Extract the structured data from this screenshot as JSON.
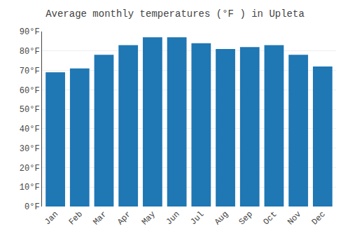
{
  "chart_data": {
    "type": "bar",
    "title": "Average monthly temperatures (°F ) in Upleta",
    "categories": [
      "Jan",
      "Feb",
      "Mar",
      "Apr",
      "May",
      "Jun",
      "Jul",
      "Aug",
      "Sep",
      "Oct",
      "Nov",
      "Dec"
    ],
    "values": [
      69,
      71,
      78,
      83,
      87,
      87,
      84,
      81,
      82,
      83,
      78,
      72
    ],
    "ylim": [
      0,
      90
    ],
    "yticks": [
      {
        "value": 0,
        "label": "0°F"
      },
      {
        "value": 10,
        "label": "10°F"
      },
      {
        "value": 20,
        "label": "20°F"
      },
      {
        "value": 30,
        "label": "30°F"
      },
      {
        "value": 40,
        "label": "40°F"
      },
      {
        "value": 50,
        "label": "50°F"
      },
      {
        "value": 60,
        "label": "60°F"
      },
      {
        "value": 70,
        "label": "70°F"
      },
      {
        "value": 80,
        "label": "80°F"
      },
      {
        "value": 90,
        "label": "90°F"
      }
    ],
    "grid": true
  }
}
